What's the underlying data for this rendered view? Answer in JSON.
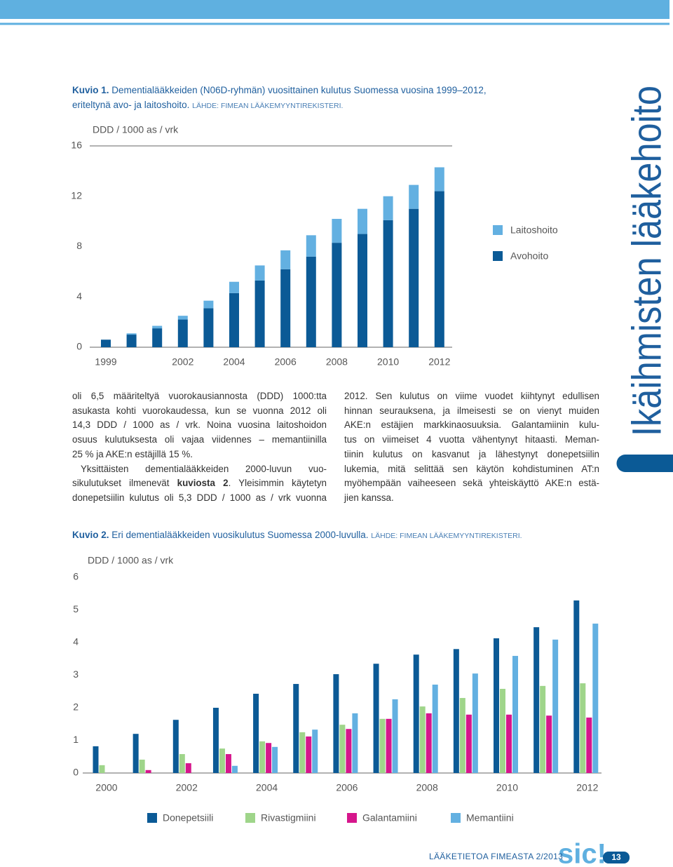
{
  "figure1": {
    "label": "Kuvio 1.",
    "caption": "Dementialääkkeiden (N06D-ryhmän) vuosittainen kulutus Suomessa vuosina 1999–2012, eriteltynä avo- ja laitoshoito.",
    "source": "LÄHDE: FIMEAN LÄÄKEMYYNTIREKISTERI."
  },
  "figure2": {
    "label": "Kuvio 2.",
    "caption": "Eri dementialääkkeiden vuosikulutus Suomessa 2000-luvulla.",
    "source": "LÄHDE: FIMEAN LÄÄKEMYYNTIREKISTERI."
  },
  "chart_data": [
    {
      "type": "bar",
      "stacked": true,
      "y_label": "DDD / 1000 as / vrk",
      "categories": [
        "1999",
        null,
        null,
        "2002",
        null,
        "2004",
        null,
        "2006",
        null,
        "2008",
        null,
        "2010",
        null,
        "2012"
      ],
      "series": [
        {
          "name": "Avohoito",
          "color": "#0b5a96",
          "values": [
            0.6,
            1.0,
            1.5,
            2.2,
            3.1,
            4.3,
            5.3,
            6.2,
            7.2,
            8.3,
            9.0,
            10.1,
            11.0,
            12.4
          ]
        },
        {
          "name": "Laitoshoito",
          "color": "#63b0e1",
          "values": [
            0.0,
            0.1,
            0.2,
            0.3,
            0.6,
            0.9,
            1.2,
            1.5,
            1.7,
            1.9,
            2.0,
            1.9,
            1.9,
            1.9
          ]
        }
      ],
      "ylim": [
        0,
        16
      ],
      "yticks": [
        0,
        4,
        8,
        12,
        16
      ],
      "legend": "right"
    },
    {
      "type": "bar",
      "stacked": false,
      "y_label": "DDD / 1000 as / vrk",
      "categories": [
        "2000",
        null,
        "2002",
        null,
        "2004",
        null,
        "2006",
        null,
        "2008",
        null,
        "2010",
        null,
        "2012"
      ],
      "series": [
        {
          "name": "Donepetsiili",
          "color": "#0b5a96",
          "values": [
            0.82,
            1.2,
            1.63,
            2.0,
            2.43,
            2.73,
            3.03,
            3.35,
            3.63,
            3.8,
            4.13,
            4.47,
            5.29
          ]
        },
        {
          "name": "Rivastigmiini",
          "color": "#9fd58a",
          "values": [
            0.24,
            0.41,
            0.58,
            0.75,
            0.97,
            1.25,
            1.48,
            1.66,
            2.04,
            2.3,
            2.58,
            2.67,
            2.75
          ]
        },
        {
          "name": "Galantamiini",
          "color": "#d6168c",
          "values": [
            0,
            0.09,
            0.3,
            0.58,
            0.92,
            1.12,
            1.35,
            1.66,
            1.83,
            1.79,
            1.79,
            1.76,
            1.7
          ]
        },
        {
          "name": "Memantiini",
          "color": "#63b0e1",
          "values": [
            0,
            0,
            0,
            0.22,
            0.8,
            1.33,
            1.83,
            2.26,
            2.71,
            3.05,
            3.59,
            4.09,
            4.58
          ]
        }
      ],
      "ylim": [
        0,
        6
      ],
      "yticks": [
        0,
        1,
        2,
        3,
        4,
        5,
        6
      ],
      "legend": "bottom"
    }
  ],
  "body": {
    "left": [
      [
        "oli 6,5 määriteltyä vuorokausiannosta (DDD) 1000:tta",
        "asukasta kohti vuorokaudessa, kun se vuonna 2012 oli",
        "14,3 DDD / 1000 as / vrk. Noina vuosina laitoshoidon",
        "osuus kulutuksesta oli vajaa viidennes – memantiinilla",
        "25 % ja AKE:n estäjillä 15 %."
      ],
      [
        "Yksittäisten dementialääkkeiden 2000-luvun vuo-",
        [
          "sikulutukset ilmenevät ",
          "kuviosta 2",
          ". Yleisimmin käytetyn"
        ],
        "donepetsiilin kulutus oli 5,3 DDD / 1000 as / vrk vuonna"
      ]
    ],
    "right": [
      [
        "2012. Sen kulutus on viime vuodet kiihtynyt edullisen",
        "hinnan seurauksena, ja ilmeisesti se on vienyt muiden",
        "AKE:n estäjien markkinaosuuksia. Galantamiinin kulu-",
        "tus on viimeiset 4 vuotta vähentynyt hitaasti. Meman-",
        "tiinin kulutus on kasvanut ja lähestynyt donepetsiilin",
        "lukemia, mitä selittää sen käytön kohdistuminen AT:n",
        "myöhempään vaiheeseen sekä yhteiskäyttö AKE:n estä-",
        "jien kanssa."
      ]
    ]
  },
  "sidebar": "Ikäihmisten lääkehoito",
  "footer": {
    "publication": "LÄÄKETIETOA FIMEASTA 2/2013",
    "logo": "sic!",
    "page": "13"
  }
}
